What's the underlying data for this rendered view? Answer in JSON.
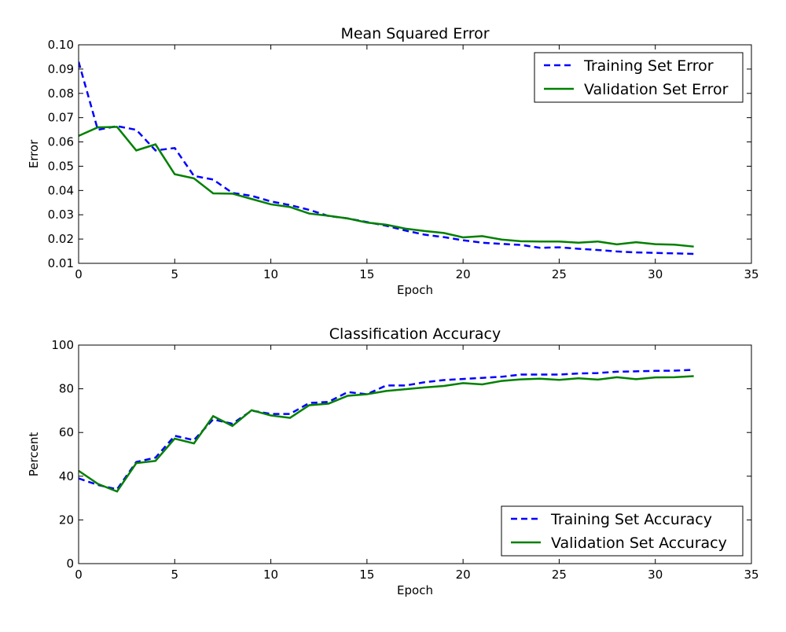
{
  "chart_data": [
    {
      "type": "line",
      "title": "Mean Squared Error",
      "xlabel": "Epoch",
      "ylabel": "Error",
      "xlim": [
        0,
        35
      ],
      "ylim": [
        0.01,
        0.1
      ],
      "xticks": [
        0,
        5,
        10,
        15,
        20,
        25,
        30,
        35
      ],
      "yticks": [
        0.01,
        0.02,
        0.03,
        0.04,
        0.05,
        0.06,
        0.07,
        0.08,
        0.09,
        0.1
      ],
      "ytick_labels": [
        "0.01",
        "0.02",
        "0.03",
        "0.04",
        "0.05",
        "0.06",
        "0.07",
        "0.08",
        "0.09",
        "0.10"
      ],
      "grid": false,
      "legend": "top-right",
      "x": [
        0,
        1,
        2,
        3,
        4,
        5,
        6,
        7,
        8,
        9,
        10,
        11,
        12,
        13,
        14,
        15,
        16,
        17,
        18,
        19,
        20,
        21,
        22,
        23,
        24,
        25,
        26,
        27,
        28,
        29,
        30,
        31,
        32
      ],
      "series": [
        {
          "name": "Training Set Error",
          "style": "dashed",
          "color": "#0000ff",
          "values": [
            0.093,
            0.065,
            0.0665,
            0.065,
            0.0565,
            0.0575,
            0.046,
            0.0445,
            0.039,
            0.0378,
            0.0355,
            0.034,
            0.032,
            0.0295,
            0.0285,
            0.027,
            0.0255,
            0.0235,
            0.0218,
            0.0208,
            0.0195,
            0.0185,
            0.018,
            0.0176,
            0.0164,
            0.0166,
            0.016,
            0.0155,
            0.0149,
            0.0145,
            0.0143,
            0.0141,
            0.0139
          ]
        },
        {
          "name": "Validation Set Error",
          "style": "solid",
          "color": "#008000",
          "values": [
            0.0625,
            0.066,
            0.0662,
            0.0565,
            0.059,
            0.0467,
            0.045,
            0.0388,
            0.0387,
            0.0365,
            0.0343,
            0.0332,
            0.0305,
            0.0296,
            0.0285,
            0.0268,
            0.0259,
            0.0243,
            0.0233,
            0.0225,
            0.0207,
            0.0212,
            0.0198,
            0.0191,
            0.019,
            0.019,
            0.0185,
            0.019,
            0.0178,
            0.0187,
            0.0179,
            0.0177,
            0.0169
          ]
        }
      ]
    },
    {
      "type": "line",
      "title": "Classification Accuracy",
      "xlabel": "Epoch",
      "ylabel": "Percent",
      "xlim": [
        0,
        35
      ],
      "ylim": [
        0,
        100
      ],
      "xticks": [
        0,
        5,
        10,
        15,
        20,
        25,
        30,
        35
      ],
      "yticks": [
        0,
        20,
        40,
        60,
        80,
        100
      ],
      "ytick_labels": [
        "0",
        "20",
        "40",
        "60",
        "80",
        "100"
      ],
      "grid": false,
      "legend": "bottom-right",
      "x": [
        0,
        1,
        2,
        3,
        4,
        5,
        6,
        7,
        8,
        9,
        10,
        11,
        12,
        13,
        14,
        15,
        16,
        17,
        18,
        19,
        20,
        21,
        22,
        23,
        24,
        25,
        26,
        27,
        28,
        29,
        30,
        31,
        32
      ],
      "series": [
        {
          "name": "Training Set Accuracy",
          "style": "dashed",
          "color": "#0000ff",
          "values": [
            39,
            36,
            34,
            46.5,
            48.5,
            58.5,
            56.5,
            66,
            64,
            70,
            68.5,
            68.5,
            73.5,
            74,
            78.5,
            77.5,
            81.5,
            81.5,
            83,
            84,
            84.5,
            85,
            85.5,
            86.5,
            86.5,
            86.5,
            87,
            87.2,
            87.8,
            88,
            88.2,
            88.3,
            88.7
          ]
        },
        {
          "name": "Validation Set Accuracy",
          "style": "solid",
          "color": "#008000",
          "values": [
            42.5,
            36.5,
            33,
            46,
            47,
            57.2,
            55,
            67.5,
            63,
            70.2,
            67.8,
            66.7,
            72.5,
            73.2,
            76.8,
            77.5,
            79,
            79.8,
            80.6,
            81.3,
            82.6,
            82,
            83.6,
            84.3,
            84.6,
            84.1,
            84.8,
            84.2,
            85.3,
            84.4,
            85.2,
            85.3,
            85.8
          ]
        }
      ]
    }
  ]
}
